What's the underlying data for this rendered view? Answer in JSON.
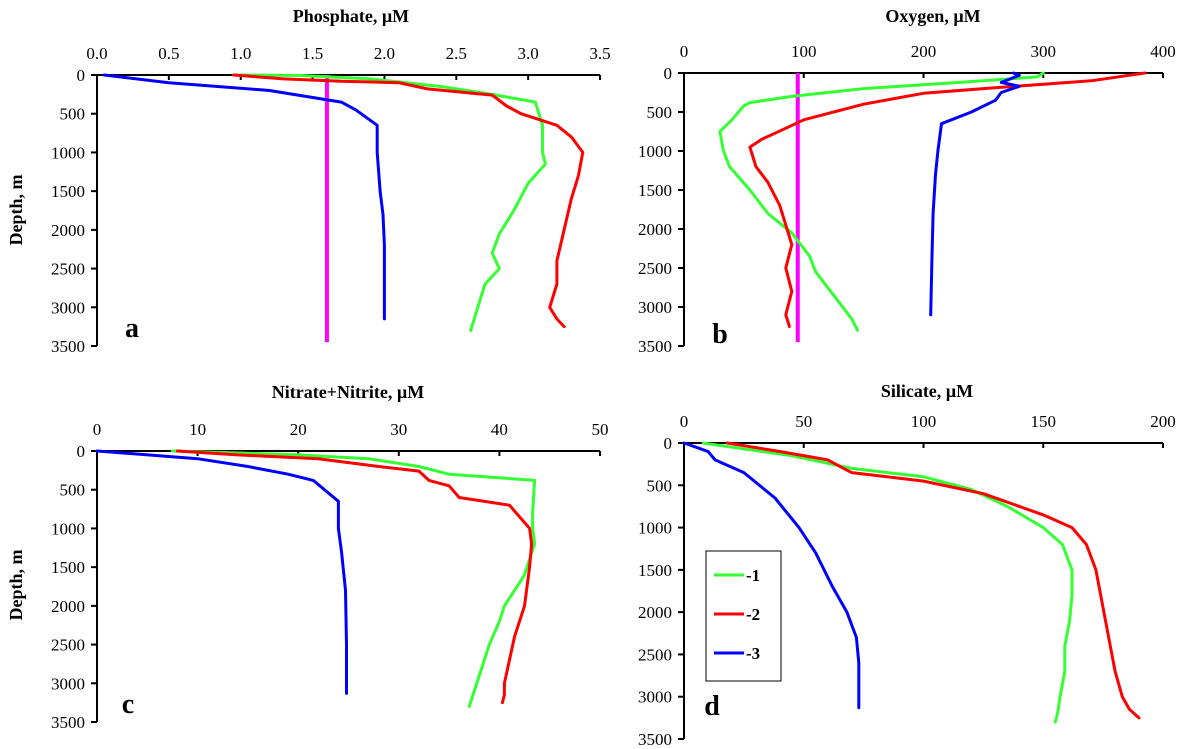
{
  "chart_data": [
    {
      "type": "line",
      "panel_letter": "a",
      "title": "Phosphate, µM",
      "ylabel": "Depth, m",
      "xlim": [
        0,
        3.5
      ],
      "ylim": [
        0,
        3500
      ],
      "y_inverted": true,
      "x_axis_position": "top",
      "x_ticks": [
        "0.0",
        "0.5",
        "1.0",
        "1.5",
        "2.0",
        "2.5",
        "3.0",
        "3.5"
      ],
      "y_ticks": [
        "0",
        "500",
        "1000",
        "1500",
        "2000",
        "2500",
        "3000",
        "3500"
      ],
      "reference_line": {
        "x": 1.6,
        "color": "#ff00ff",
        "y_range": [
          0,
          3450
        ]
      },
      "series": [
        {
          "name": "1",
          "color": "#33ff33",
          "points": [
            [
              0.95,
              0
            ],
            [
              1.4,
              5
            ],
            [
              1.9,
              50
            ],
            [
              2.4,
              150
            ],
            [
              2.75,
              250
            ],
            [
              3.05,
              350
            ],
            [
              3.1,
              650
            ],
            [
              3.1,
              1000
            ],
            [
              3.12,
              1150
            ],
            [
              3.0,
              1400
            ],
            [
              2.9,
              1750
            ],
            [
              2.8,
              2050
            ],
            [
              2.75,
              2300
            ],
            [
              2.8,
              2500
            ],
            [
              2.7,
              2700
            ],
            [
              2.65,
              3000
            ],
            [
              2.6,
              3300
            ]
          ]
        },
        {
          "name": "2",
          "color": "#ff0000",
          "points": [
            [
              0.95,
              0
            ],
            [
              1.3,
              50
            ],
            [
              1.7,
              80
            ],
            [
              2.1,
              100
            ],
            [
              2.3,
              180
            ],
            [
              2.75,
              260
            ],
            [
              2.85,
              400
            ],
            [
              2.95,
              500
            ],
            [
              3.2,
              650
            ],
            [
              3.3,
              800
            ],
            [
              3.38,
              1000
            ],
            [
              3.35,
              1300
            ],
            [
              3.3,
              1600
            ],
            [
              3.25,
              2000
            ],
            [
              3.2,
              2400
            ],
            [
              3.2,
              2700
            ],
            [
              3.15,
              3000
            ],
            [
              3.2,
              3150
            ],
            [
              3.25,
              3250
            ]
          ]
        },
        {
          "name": "3",
          "color": "#0000ff",
          "points": [
            [
              0.05,
              0
            ],
            [
              0.5,
              100
            ],
            [
              1.2,
              200
            ],
            [
              1.7,
              350
            ],
            [
              1.8,
              450
            ],
            [
              1.95,
              650
            ],
            [
              1.95,
              1000
            ],
            [
              1.97,
              1500
            ],
            [
              1.99,
              1800
            ],
            [
              2.0,
              2200
            ],
            [
              2.0,
              2700
            ],
            [
              2.0,
              3150
            ]
          ]
        }
      ]
    },
    {
      "type": "line",
      "panel_letter": "b",
      "title": "Oxygen, µM",
      "ylabel": "",
      "xlim": [
        0,
        400
      ],
      "ylim": [
        0,
        3500
      ],
      "y_inverted": true,
      "x_axis_position": "top",
      "x_ticks": [
        "0",
        "100",
        "200",
        "300",
        "400"
      ],
      "y_ticks": [
        "0",
        "500",
        "1000",
        "1500",
        "2000",
        "2500",
        "3000",
        "3500"
      ],
      "reference_line": {
        "x": 95,
        "color": "#ff00ff",
        "y_range": [
          0,
          3450
        ]
      },
      "series": [
        {
          "name": "1",
          "color": "#33ff33",
          "points": [
            [
              300,
              0
            ],
            [
              295,
              50
            ],
            [
              230,
              120
            ],
            [
              150,
              200
            ],
            [
              90,
              300
            ],
            [
              55,
              380
            ],
            [
              50,
              420
            ],
            [
              40,
              600
            ],
            [
              30,
              750
            ],
            [
              33,
              1000
            ],
            [
              38,
              1200
            ],
            [
              55,
              1500
            ],
            [
              70,
              1800
            ],
            [
              90,
              2050
            ],
            [
              105,
              2350
            ],
            [
              110,
              2550
            ],
            [
              125,
              2850
            ],
            [
              140,
              3150
            ],
            [
              145,
              3300
            ]
          ]
        },
        {
          "name": "2",
          "color": "#ff0000",
          "points": [
            [
              385,
              0
            ],
            [
              340,
              100
            ],
            [
              250,
              200
            ],
            [
              200,
              260
            ],
            [
              150,
              400
            ],
            [
              100,
              600
            ],
            [
              75,
              780
            ],
            [
              65,
              850
            ],
            [
              55,
              950
            ],
            [
              60,
              1200
            ],
            [
              70,
              1400
            ],
            [
              80,
              1700
            ],
            [
              85,
              1950
            ],
            [
              90,
              2200
            ],
            [
              85,
              2500
            ],
            [
              90,
              2800
            ],
            [
              85,
              3100
            ],
            [
              88,
              3250
            ]
          ]
        },
        {
          "name": "3",
          "color": "#0000ff",
          "points": [
            [
              275,
              0
            ],
            [
              280,
              30
            ],
            [
              265,
              120
            ],
            [
              280,
              170
            ],
            [
              265,
              250
            ],
            [
              260,
              350
            ],
            [
              240,
              500
            ],
            [
              215,
              650
            ],
            [
              212,
              1000
            ],
            [
              210,
              1300
            ],
            [
              208,
              1800
            ],
            [
              207,
              2400
            ],
            [
              206,
              3100
            ]
          ]
        }
      ]
    },
    {
      "type": "line",
      "panel_letter": "c",
      "title": "Nitrate+Nitrite, µM",
      "ylabel": "Depth, m",
      "xlim": [
        0,
        50
      ],
      "ylim": [
        0,
        3500
      ],
      "y_inverted": true,
      "x_axis_position": "top",
      "x_ticks": [
        "0",
        "10",
        "20",
        "30",
        "40",
        "50"
      ],
      "y_ticks": [
        "0",
        "500",
        "1000",
        "1500",
        "2000",
        "2500",
        "3000",
        "3500"
      ],
      "series": [
        {
          "name": "1",
          "color": "#33ff33",
          "points": [
            [
              7.5,
              0
            ],
            [
              20,
              50
            ],
            [
              27,
              100
            ],
            [
              32,
              200
            ],
            [
              35,
              300
            ],
            [
              43.5,
              380
            ],
            [
              43.3,
              800
            ],
            [
              43.3,
              1000
            ],
            [
              43.5,
              1200
            ],
            [
              42.5,
              1600
            ],
            [
              41.5,
              1800
            ],
            [
              40.5,
              2000
            ],
            [
              40,
              2200
            ],
            [
              39,
              2500
            ],
            [
              38.5,
              2700
            ],
            [
              38,
              2900
            ],
            [
              37.5,
              3100
            ],
            [
              37,
              3300
            ]
          ]
        },
        {
          "name": "2",
          "color": "#ff0000",
          "points": [
            [
              8,
              0
            ],
            [
              14,
              50
            ],
            [
              22,
              100
            ],
            [
              28,
              200
            ],
            [
              32,
              260
            ],
            [
              33,
              380
            ],
            [
              35,
              450
            ],
            [
              36,
              600
            ],
            [
              41,
              700
            ],
            [
              42,
              850
            ],
            [
              43,
              1000
            ],
            [
              43.2,
              1200
            ],
            [
              43,
              1500
            ],
            [
              42.5,
              2000
            ],
            [
              41.5,
              2400
            ],
            [
              40.5,
              3000
            ],
            [
              40.5,
              3150
            ],
            [
              40.3,
              3250
            ]
          ]
        },
        {
          "name": "3",
          "color": "#0000ff",
          "points": [
            [
              0,
              0
            ],
            [
              10,
              100
            ],
            [
              15,
              200
            ],
            [
              19,
              300
            ],
            [
              21.5,
              380
            ],
            [
              24,
              650
            ],
            [
              24,
              1000
            ],
            [
              24.3,
              1300
            ],
            [
              24.7,
              1800
            ],
            [
              24.8,
              2500
            ],
            [
              24.8,
              3130
            ]
          ]
        }
      ]
    },
    {
      "type": "line",
      "panel_letter": "d",
      "title": "Silicate, µM",
      "ylabel": "",
      "xlim": [
        0,
        200
      ],
      "ylim": [
        0,
        3500
      ],
      "y_inverted": true,
      "x_axis_position": "top",
      "x_ticks": [
        "0",
        "50",
        "100",
        "150",
        "200"
      ],
      "y_ticks": [
        "0",
        "500",
        "1000",
        "1500",
        "2000",
        "2500",
        "3000",
        "3500"
      ],
      "legend": {
        "position": "center-left",
        "entries": [
          "-1",
          "-2",
          "-3"
        ]
      },
      "series": [
        {
          "name": "1",
          "color": "#33ff33",
          "points": [
            [
              8,
              0
            ],
            [
              20,
              50
            ],
            [
              45,
              150
            ],
            [
              70,
              300
            ],
            [
              100,
              400
            ],
            [
              120,
              550
            ],
            [
              135,
              750
            ],
            [
              150,
              1000
            ],
            [
              158,
              1200
            ],
            [
              162,
              1500
            ],
            [
              162,
              1800
            ],
            [
              161,
              2100
            ],
            [
              159,
              2400
            ],
            [
              159,
              2700
            ],
            [
              157,
              3000
            ],
            [
              156,
              3200
            ],
            [
              155,
              3300
            ]
          ]
        },
        {
          "name": "2",
          "color": "#ff0000",
          "points": [
            [
              18,
              0
            ],
            [
              40,
              100
            ],
            [
              60,
              200
            ],
            [
              70,
              350
            ],
            [
              100,
              450
            ],
            [
              125,
              600
            ],
            [
              140,
              750
            ],
            [
              150,
              850
            ],
            [
              162,
              1000
            ],
            [
              168,
              1200
            ],
            [
              172,
              1500
            ],
            [
              174,
              1800
            ],
            [
              176,
              2100
            ],
            [
              178,
              2400
            ],
            [
              180,
              2700
            ],
            [
              183,
              3000
            ],
            [
              186,
              3150
            ],
            [
              190,
              3250
            ]
          ]
        },
        {
          "name": "3",
          "color": "#0000ff",
          "points": [
            [
              0,
              0
            ],
            [
              5,
              50
            ],
            [
              10,
              100
            ],
            [
              13,
              200
            ],
            [
              25,
              350
            ],
            [
              38,
              650
            ],
            [
              48,
              1000
            ],
            [
              55,
              1300
            ],
            [
              62,
              1700
            ],
            [
              68,
              2000
            ],
            [
              72,
              2300
            ],
            [
              73,
              2600
            ],
            [
              73,
              2900
            ],
            [
              73,
              3130
            ]
          ]
        }
      ]
    }
  ]
}
